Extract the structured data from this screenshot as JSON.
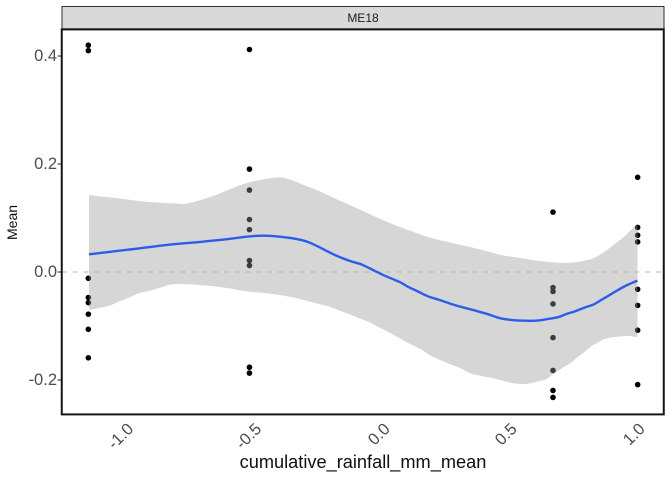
{
  "facet": {
    "label": "ME18",
    "strip_fill": "#D9D9D9",
    "strip_border": "#2E2E2E",
    "text_color": "#1C1C1C"
  },
  "chart_data": {
    "type": "scatter",
    "title": "ME18",
    "xlabel": "cumulative_rainfall_mm_mean",
    "ylabel": "Mean",
    "xlim": [
      -1.278,
      1.078
    ],
    "ylim": [
      -0.2637,
      0.4493
    ],
    "x_ticks": [
      -1.0,
      -0.5,
      0.0,
      0.5,
      1.0
    ],
    "x_tick_labels": [
      "-1.0",
      "-0.5",
      "0.0",
      "0.5",
      "1.0"
    ],
    "y_ticks": [
      -0.2,
      0.0,
      0.2,
      0.4
    ],
    "y_tick_labels": [
      "-0.2",
      "0.0",
      "0.2",
      "0.4"
    ],
    "grid": false,
    "legend": null,
    "reference_line": {
      "y": 0.0,
      "style": "dashed",
      "color": "#B2B2B2"
    },
    "points": {
      "color": "#000000",
      "radius": 2.8,
      "data": [
        {
          "x": -1.175,
          "y": 0.42
        },
        {
          "x": -1.175,
          "y": 0.41
        },
        {
          "x": -1.175,
          "y": -0.0116
        },
        {
          "x": -1.175,
          "y": -0.0472
        },
        {
          "x": -1.175,
          "y": -0.0568
        },
        {
          "x": -1.175,
          "y": -0.0781
        },
        {
          "x": -1.175,
          "y": -0.1061
        },
        {
          "x": -1.175,
          "y": -0.1589
        },
        {
          "x": -0.545,
          "y": 0.4121
        },
        {
          "x": -0.545,
          "y": 0.1906
        },
        {
          "x": -0.545,
          "y": 0.1517
        },
        {
          "x": -0.545,
          "y": 0.0971
        },
        {
          "x": -0.545,
          "y": 0.0785
        },
        {
          "x": -0.545,
          "y": 0.0213
        },
        {
          "x": -0.545,
          "y": 0.0121
        },
        {
          "x": -0.545,
          "y": -0.1763
        },
        {
          "x": -0.545,
          "y": -0.1872
        },
        {
          "x": 0.642,
          "y": 0.1109
        },
        {
          "x": 0.642,
          "y": -0.0287
        },
        {
          "x": 0.642,
          "y": -0.0361
        },
        {
          "x": 0.642,
          "y": -0.0591
        },
        {
          "x": 0.642,
          "y": -0.1215
        },
        {
          "x": 0.642,
          "y": -0.1822
        },
        {
          "x": 0.642,
          "y": -0.2194
        },
        {
          "x": 0.642,
          "y": -0.2322
        },
        {
          "x": 0.973,
          "y": 0.1754
        },
        {
          "x": 0.973,
          "y": 0.0826
        },
        {
          "x": 0.973,
          "y": 0.068
        },
        {
          "x": 0.973,
          "y": 0.0558
        },
        {
          "x": 0.973,
          "y": -0.032
        },
        {
          "x": 0.973,
          "y": -0.0618
        },
        {
          "x": 0.973,
          "y": -0.1078
        },
        {
          "x": 0.973,
          "y": -0.2085
        }
      ]
    },
    "smooth_line": {
      "color": "#2C5DEA",
      "width": 2.4,
      "path": [
        [
          -1.1724,
          0.0328
        ],
        [
          -1.0825,
          0.0378
        ],
        [
          -0.9769,
          0.0437
        ],
        [
          -0.8713,
          0.05
        ],
        [
          -0.7657,
          0.0546
        ],
        [
          -0.6602,
          0.0593
        ],
        [
          -0.5468,
          0.0659
        ],
        [
          -0.492,
          0.0672
        ],
        [
          -0.4412,
          0.0661
        ],
        [
          -0.3864,
          0.063
        ],
        [
          -0.3356,
          0.0585
        ],
        [
          -0.3043,
          0.0534
        ],
        [
          -0.2613,
          0.0435
        ],
        [
          -0.2066,
          0.0306
        ],
        [
          -0.1518,
          0.0204
        ],
        [
          -0.1127,
          0.015
        ],
        [
          -0.0775,
          0.0074
        ],
        [
          -0.0443,
          -0.0004
        ],
        [
          -0.0149,
          -0.007
        ],
        [
          0.0437,
          -0.0189
        ],
        [
          0.075,
          -0.0274
        ],
        [
          0.1141,
          -0.0361
        ],
        [
          0.1532,
          -0.045
        ],
        [
          0.2001,
          -0.052
        ],
        [
          0.2588,
          -0.0613
        ],
        [
          0.3174,
          -0.0689
        ],
        [
          0.3761,
          -0.0765
        ],
        [
          0.4347,
          -0.0855
        ],
        [
          0.4738,
          -0.0885
        ],
        [
          0.513,
          -0.09
        ],
        [
          0.556,
          -0.0904
        ],
        [
          0.5912,
          -0.0894
        ],
        [
          0.6224,
          -0.087
        ],
        [
          0.6615,
          -0.0837
        ],
        [
          0.6967,
          -0.0774
        ],
        [
          0.7241,
          -0.0735
        ],
        [
          0.7476,
          -0.0692
        ],
        [
          0.7749,
          -0.0644
        ],
        [
          0.8023,
          -0.0598
        ],
        [
          0.8336,
          -0.0509
        ],
        [
          0.8649,
          -0.0422
        ],
        [
          0.8962,
          -0.0333
        ],
        [
          0.9275,
          -0.0252
        ],
        [
          0.9509,
          -0.0202
        ],
        [
          0.9724,
          -0.0161
        ]
      ]
    },
    "ribbon": {
      "fill": "rgba(153,153,153,0.40)",
      "upper": [
        [
          -1.1724,
          0.1426
        ],
        [
          -1.1294,
          0.14
        ],
        [
          -1.0708,
          0.1371
        ],
        [
          -1.0121,
          0.1337
        ],
        [
          -0.9534,
          0.1304
        ],
        [
          -0.8948,
          0.1285
        ],
        [
          -0.8361,
          0.1269
        ],
        [
          -0.797,
          0.1263
        ],
        [
          -0.7384,
          0.133
        ],
        [
          -0.6758,
          0.1426
        ],
        [
          -0.6132,
          0.1548
        ],
        [
          -0.5546,
          0.1648
        ],
        [
          -0.492,
          0.1715
        ],
        [
          -0.4255,
          0.175
        ],
        [
          -0.3864,
          0.1713
        ],
        [
          -0.3356,
          0.1617
        ],
        [
          -0.2809,
          0.1517
        ],
        [
          -0.23,
          0.1406
        ],
        [
          -0.1792,
          0.1295
        ],
        [
          -0.1244,
          0.1182
        ],
        [
          -0.0736,
          0.1069
        ],
        [
          -0.0149,
          0.0945
        ],
        [
          0.0437,
          0.0834
        ],
        [
          0.1024,
          0.0732
        ],
        [
          0.1571,
          0.0641
        ],
        [
          0.2158,
          0.0572
        ],
        [
          0.2744,
          0.0509
        ],
        [
          0.3174,
          0.0463
        ],
        [
          0.3761,
          0.0393
        ],
        [
          0.4347,
          0.0319
        ],
        [
          0.4738,
          0.0287
        ],
        [
          0.513,
          0.0261
        ],
        [
          0.5599,
          0.0224
        ],
        [
          0.6068,
          0.0196
        ],
        [
          0.6537,
          0.0174
        ],
        [
          0.6967,
          0.0169
        ],
        [
          0.7437,
          0.0191
        ],
        [
          0.7906,
          0.0241
        ],
        [
          0.8258,
          0.0321
        ],
        [
          0.8492,
          0.0395
        ],
        [
          0.8727,
          0.048
        ],
        [
          0.8962,
          0.0565
        ],
        [
          0.9196,
          0.065
        ],
        [
          0.9392,
          0.0745
        ],
        [
          0.9626,
          0.085
        ],
        [
          0.9724,
          0.0904
        ]
      ],
      "lower": [
        [
          -1.1724,
          -0.0704
        ],
        [
          -1.1294,
          -0.0663
        ],
        [
          -1.0903,
          -0.0618
        ],
        [
          -1.0512,
          -0.0539
        ],
        [
          -1.0121,
          -0.0468
        ],
        [
          -0.973,
          -0.0385
        ],
        [
          -0.9339,
          -0.0346
        ],
        [
          -0.8948,
          -0.0292
        ],
        [
          -0.8557,
          -0.0233
        ],
        [
          -0.8166,
          -0.0224
        ],
        [
          -0.7775,
          -0.0229
        ],
        [
          -0.7384,
          -0.0242
        ],
        [
          -0.6797,
          -0.0265
        ],
        [
          -0.6211,
          -0.0305
        ],
        [
          -0.5468,
          -0.0363
        ],
        [
          -0.4725,
          -0.0396
        ],
        [
          -0.3864,
          -0.0459
        ],
        [
          -0.3473,
          -0.0502
        ],
        [
          -0.3082,
          -0.055
        ],
        [
          -0.2691,
          -0.0598
        ],
        [
          -0.23,
          -0.0646
        ],
        [
          -0.1909,
          -0.0718
        ],
        [
          -0.1518,
          -0.0787
        ],
        [
          -0.1127,
          -0.0863
        ],
        [
          -0.0736,
          -0.0935
        ],
        [
          -0.0345,
          -0.1033
        ],
        [
          0.0046,
          -0.1126
        ],
        [
          0.0437,
          -0.1231
        ],
        [
          0.0828,
          -0.133
        ],
        [
          0.1219,
          -0.1422
        ],
        [
          0.161,
          -0.1542
        ],
        [
          0.2001,
          -0.163
        ],
        [
          0.2392,
          -0.1707
        ],
        [
          0.2783,
          -0.1778
        ],
        [
          0.3174,
          -0.1872
        ],
        [
          0.3565,
          -0.1922
        ],
        [
          0.3956,
          -0.1959
        ],
        [
          0.4347,
          -0.2
        ],
        [
          0.4817,
          -0.2055
        ],
        [
          0.5208,
          -0.2074
        ],
        [
          0.556,
          -0.2059
        ],
        [
          0.5912,
          -0.2017
        ],
        [
          0.6185,
          -0.1978
        ],
        [
          0.642,
          -0.1889
        ],
        [
          0.6733,
          -0.1796
        ],
        [
          0.6928,
          -0.1737
        ],
        [
          0.7163,
          -0.1667
        ],
        [
          0.7358,
          -0.1585
        ],
        [
          0.7593,
          -0.1505
        ],
        [
          0.7789,
          -0.1426
        ],
        [
          0.7984,
          -0.1355
        ],
        [
          0.8219,
          -0.1294
        ],
        [
          0.8414,
          -0.1244
        ],
        [
          0.8649,
          -0.1215
        ],
        [
          0.904,
          -0.1191
        ],
        [
          0.9431,
          -0.1185
        ],
        [
          0.9587,
          -0.12
        ],
        [
          0.9724,
          -0.1213
        ]
      ]
    },
    "colors": {
      "panel_border": "#141414",
      "axis_tick": "#333333",
      "axis_text": "#4D4D4D",
      "axis_title": "#0E0E0E"
    }
  }
}
